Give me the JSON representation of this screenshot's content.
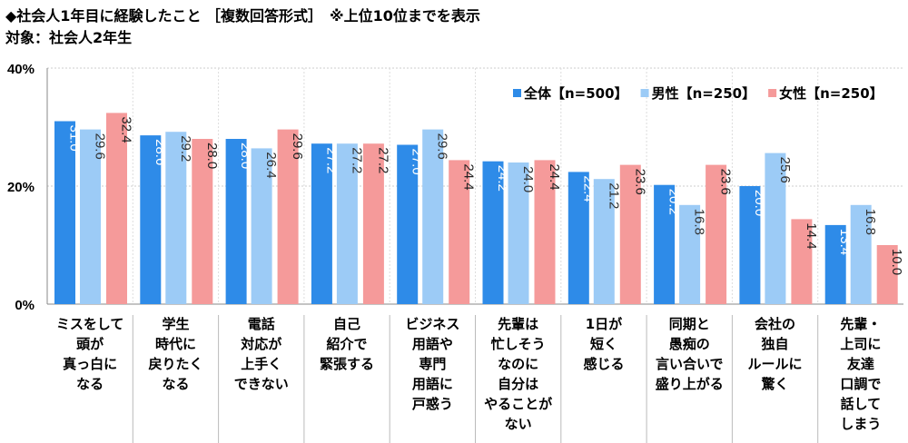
{
  "title": "◆社会人1年目に経験したこと ［複数回答形式］　※上位10位までを表示",
  "subtitle": "対象：社会人2年生",
  "chart_data": {
    "type": "bar",
    "ylim": [
      0,
      40
    ],
    "yticks": [
      "0%",
      "20%",
      "40%"
    ],
    "ytick_values": [
      0,
      20,
      40
    ],
    "legend_position": "top-right",
    "categories": [
      [
        "ミスをして",
        "頭が",
        "真っ白に",
        "なる"
      ],
      [
        "学生",
        "時代に",
        "戻りたく",
        "なる"
      ],
      [
        "電話",
        "対応が",
        "上手く",
        "できない"
      ],
      [
        "自己",
        "紹介で",
        "緊張する"
      ],
      [
        "ビジネス",
        "用語や",
        "専門",
        "用語に",
        "戸惑う"
      ],
      [
        "先輩は",
        "忙しそう",
        "なのに",
        "自分は",
        "やることが",
        "ない"
      ],
      [
        "1日が",
        "短く",
        "感じる"
      ],
      [
        "同期と",
        "愚痴の",
        "言い合いで",
        "盛り上がる"
      ],
      [
        "会社の",
        "独自",
        "ルールに",
        "驚く"
      ],
      [
        "先輩・",
        "上司に",
        "友達",
        "口調で",
        "話して",
        "しまう"
      ]
    ],
    "series": [
      {
        "name": "全体【n=500】",
        "color": "#2E8BE8",
        "label_color": "#ffffff",
        "values": [
          31.0,
          28.6,
          28.0,
          27.2,
          27.0,
          24.2,
          22.4,
          20.2,
          20.0,
          13.4
        ]
      },
      {
        "name": "男性【n=250】",
        "color": "#9CCBF6",
        "label_color": "#333333",
        "values": [
          29.6,
          29.2,
          26.4,
          27.2,
          29.6,
          24.0,
          21.2,
          16.8,
          25.6,
          16.8
        ]
      },
      {
        "name": "女性【n=250】",
        "color": "#F59A9A",
        "label_color": "#222222",
        "values": [
          32.4,
          28.0,
          29.6,
          27.2,
          24.4,
          24.4,
          23.6,
          23.6,
          14.4,
          10.0
        ]
      }
    ]
  }
}
